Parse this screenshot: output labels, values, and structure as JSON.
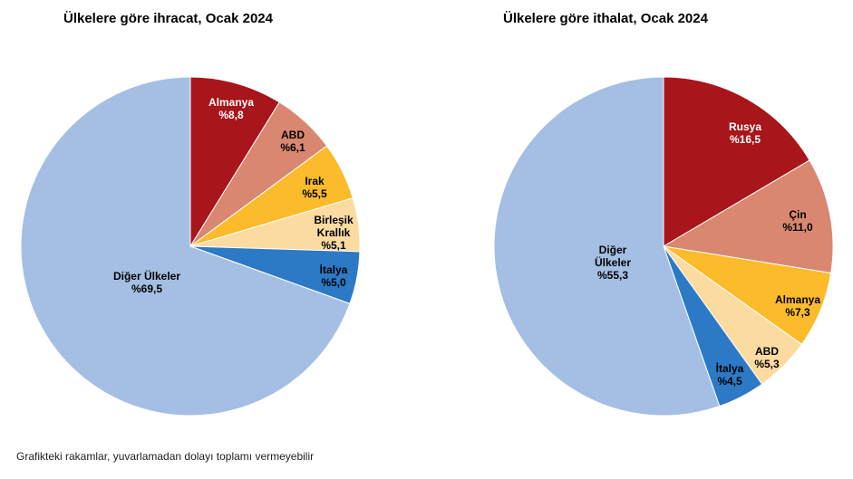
{
  "chart_data": [
    {
      "type": "pie",
      "title": "Ülkelere göre ihracat, Ocak 2024",
      "slices": [
        {
          "name": [
            "Almanya"
          ],
          "pct_label": "%8,8",
          "value": 8.8,
          "color": "#a8151a",
          "label_color": "#ffffff"
        },
        {
          "name": [
            "ABD"
          ],
          "pct_label": "%6,1",
          "value": 6.1,
          "color": "#d98770",
          "label_color": "#000000"
        },
        {
          "name": [
            "Irak"
          ],
          "pct_label": "%5,5",
          "value": 5.5,
          "color": "#fbbb2a",
          "label_color": "#000000"
        },
        {
          "name": [
            "Birleşik",
            "Krallık"
          ],
          "pct_label": "%5,1",
          "value": 5.1,
          "color": "#fbdba0",
          "label_color": "#000000"
        },
        {
          "name": [
            "İtalya"
          ],
          "pct_label": "%5,0",
          "value": 5.0,
          "color": "#2c7ac6",
          "label_color": "#000000"
        },
        {
          "name": [
            "Diğer Ülkeler"
          ],
          "pct_label": "%69,5",
          "value": 69.5,
          "color": "#a5bfe4",
          "label_color": "#000000"
        }
      ]
    },
    {
      "type": "pie",
      "title": "Ülkelere göre ithalat, Ocak 2024",
      "slices": [
        {
          "name": [
            "Rusya"
          ],
          "pct_label": "%16,5",
          "value": 16.5,
          "color": "#a8151a",
          "label_color": "#ffffff"
        },
        {
          "name": [
            "Çin"
          ],
          "pct_label": "%11,0",
          "value": 11.0,
          "color": "#d98770",
          "label_color": "#000000"
        },
        {
          "name": [
            "Almanya"
          ],
          "pct_label": "%7,3",
          "value": 7.3,
          "color": "#fbbb2a",
          "label_color": "#000000"
        },
        {
          "name": [
            "ABD"
          ],
          "pct_label": "%5,3",
          "value": 5.3,
          "color": "#fbdba0",
          "label_color": "#000000"
        },
        {
          "name": [
            "İtalya"
          ],
          "pct_label": "%4,5",
          "value": 4.5,
          "color": "#2c7ac6",
          "label_color": "#000000"
        },
        {
          "name": [
            "Diğer",
            "Ülkeler"
          ],
          "pct_label": "%55,3",
          "value": 55.3,
          "color": "#a5bfe4",
          "label_color": "#000000"
        }
      ]
    }
  ],
  "footnote": "Grafikteki rakamlar, yuvarlamadan dolayı toplamı vermeyebilir"
}
